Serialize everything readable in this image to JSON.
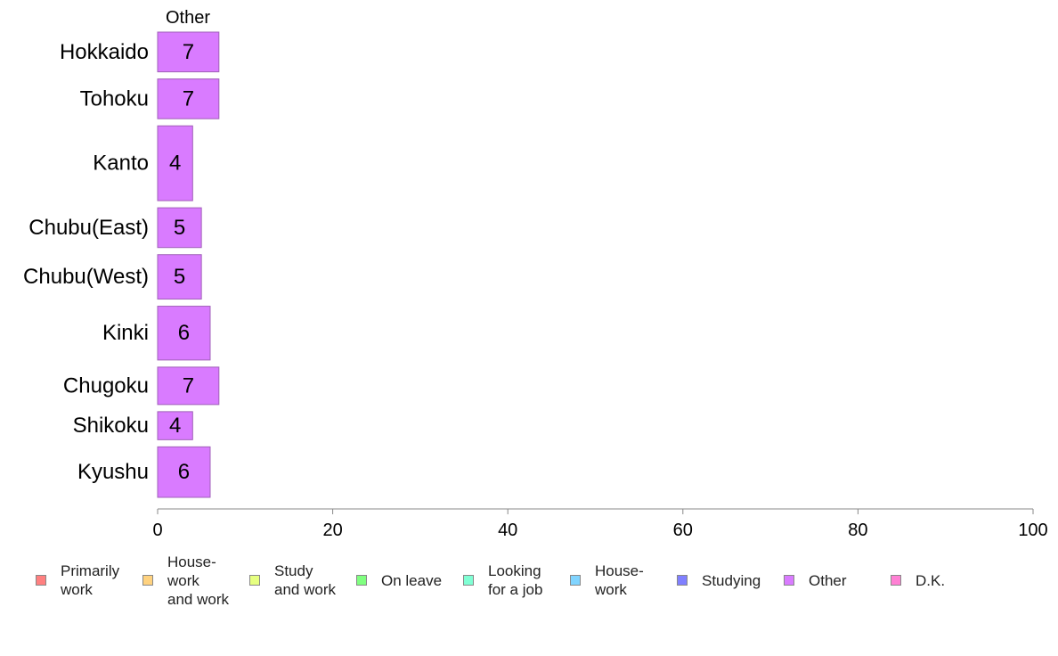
{
  "chart_data": {
    "type": "bar",
    "orientation": "horizontal",
    "title": "Other",
    "categories": [
      "Hokkaido",
      "Tohoku",
      "Kanto",
      "Chubu(East)",
      "Chubu(West)",
      "Kinki",
      "Chugoku",
      "Shikoku",
      "Kyushu"
    ],
    "series": [
      {
        "name": "Other",
        "values": [
          7,
          7,
          4,
          5,
          5,
          6,
          7,
          4,
          6
        ],
        "value_labels": [
          "7",
          "7",
          "4",
          "5",
          "5",
          "6",
          "7",
          "4",
          "6"
        ],
        "color": "#d97bff"
      }
    ],
    "relative_widths": [
      0.85,
      0.85,
      1.6,
      0.85,
      0.95,
      1.15,
      0.8,
      0.6,
      1.08
    ],
    "xlim": [
      0,
      100
    ],
    "xticks": [
      0,
      20,
      40,
      60,
      80,
      100
    ],
    "xtick_labels": [
      "0",
      "20",
      "40",
      "60",
      "80",
      "100"
    ],
    "grid": false,
    "legend_position": "bottom",
    "legend": [
      {
        "label": "Primarily\nwork",
        "color": "#ff8080"
      },
      {
        "label": "House-\nwork\nand work",
        "color": "#ffd27f"
      },
      {
        "label": "Study\nand work",
        "color": "#e6ff80"
      },
      {
        "label": "On leave",
        "color": "#80ff80"
      },
      {
        "label": "Looking\nfor a job",
        "color": "#80ffd4"
      },
      {
        "label": "House-\nwork",
        "color": "#80d4ff"
      },
      {
        "label": "Studying",
        "color": "#8080ff"
      },
      {
        "label": "Other",
        "color": "#d97bff"
      },
      {
        "label": "D.K.",
        "color": "#ff80d4"
      }
    ]
  }
}
